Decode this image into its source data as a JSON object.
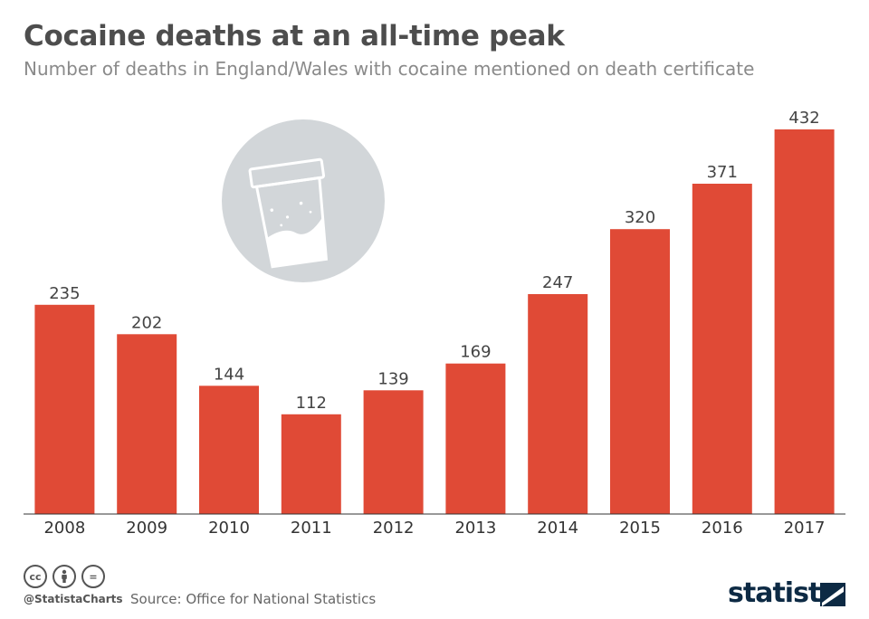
{
  "title": "Cocaine deaths at an all-time peak",
  "subtitle": "Number of deaths in England/Wales with cocaine mentioned on death certificate",
  "chart_data": {
    "type": "bar",
    "categories": [
      "2008",
      "2009",
      "2010",
      "2011",
      "2012",
      "2013",
      "2014",
      "2015",
      "2016",
      "2017"
    ],
    "values": [
      235,
      202,
      144,
      112,
      139,
      169,
      247,
      320,
      371,
      432
    ],
    "title": "Cocaine deaths at an all-time peak",
    "xlabel": "",
    "ylabel": "",
    "ylim": [
      0,
      432
    ],
    "bar_color": "#e04a36",
    "grid": false,
    "legend": "none"
  },
  "illustration": {
    "icon": "cocaine-bag-icon",
    "circle_color": "#d2d6d9"
  },
  "footer": {
    "license_icons": [
      "cc-icon",
      "by-icon",
      "nd-icon"
    ],
    "cc_label": "cc",
    "nd_label": "=",
    "handle": "@StatistaCharts",
    "source": "Source: Office for National Statistics",
    "brand": "statista"
  }
}
